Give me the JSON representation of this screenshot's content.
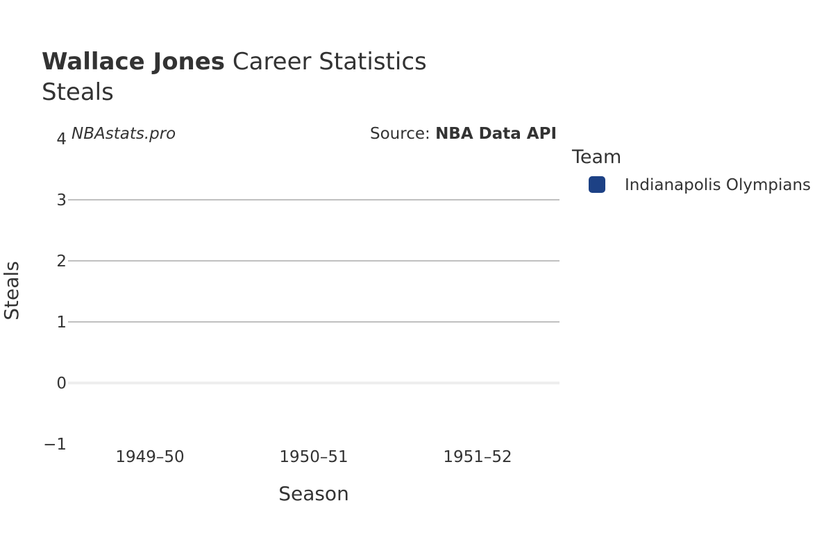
{
  "header": {
    "player_name": "Wallace Jones",
    "title_suffix": " Career Statistics",
    "subtitle": "Steals"
  },
  "credits": {
    "site": "NBAstats.pro",
    "source_prefix": "Source: ",
    "source_name": "NBA Data API"
  },
  "legend": {
    "title": "Team",
    "items": [
      {
        "label": "Indianapolis Olympians",
        "color": "#1d4185"
      }
    ]
  },
  "chart_data": {
    "type": "bar",
    "categories": [
      "1949–50",
      "1950–51",
      "1951–52"
    ],
    "series": [
      {
        "name": "Indianapolis Olympians",
        "values": [
          0,
          0,
          0
        ],
        "color": "#1d4185"
      }
    ],
    "xlabel": "Season",
    "ylabel": "Steals",
    "ylim": [
      -1,
      4
    ],
    "yticks": [
      -1,
      0,
      1,
      2,
      3,
      4
    ],
    "ytick_labels": [
      "−1",
      "0",
      "1",
      "2",
      "3",
      "4"
    ],
    "grid": true,
    "legend_position": "right"
  }
}
